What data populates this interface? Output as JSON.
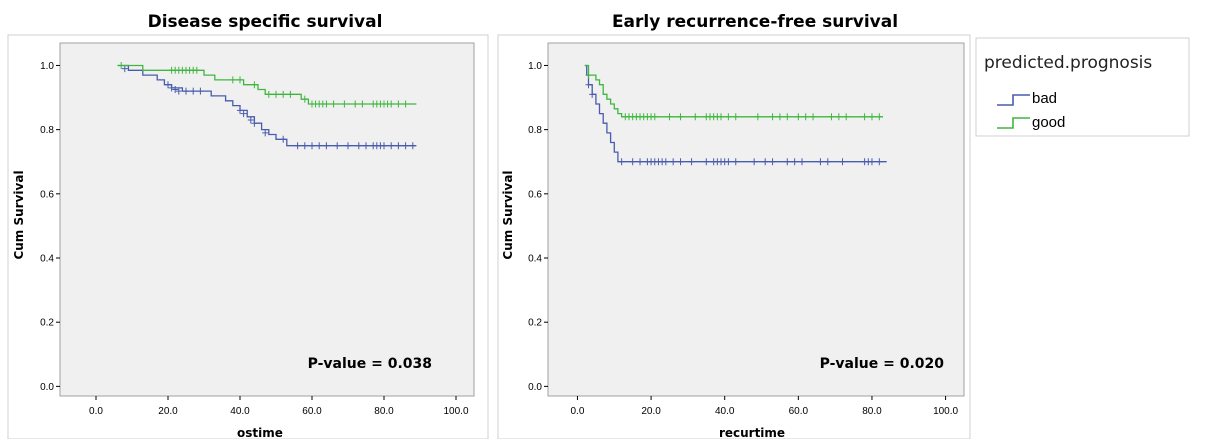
{
  "colors": {
    "bad": "#4a5cad",
    "good": "#3fb73f",
    "plot_bg": "#f0f0f0",
    "frame": "#a0a0a0"
  },
  "legend": {
    "title": "predicted.prognosis",
    "items": [
      {
        "label": "bad",
        "color": "#4a5cad"
      },
      {
        "label": "good",
        "color": "#3fb73f"
      }
    ]
  },
  "chart_data": [
    {
      "type": "line",
      "title": "Disease specific survival",
      "xlabel": "ostime",
      "ylabel": "Cum Survival",
      "xlim": [
        -10,
        105
      ],
      "ylim": [
        -0.03,
        1.07
      ],
      "xticks": [
        0,
        20,
        40,
        60,
        80,
        100
      ],
      "xtick_labels": [
        "0.0",
        "20.0",
        "40.0",
        "60.0",
        "80.0",
        "100.0"
      ],
      "yticks": [
        0,
        0.2,
        0.4,
        0.6,
        0.8,
        1.0
      ],
      "ytick_labels": [
        "0.0",
        "0.2",
        "0.4",
        "0.6",
        "0.8",
        "1.0"
      ],
      "annotation": "P-value = 0.038",
      "series": [
        {
          "name": "bad",
          "color": "#4a5cad",
          "steps": [
            [
              6,
              1.0
            ],
            [
              9,
              0.985
            ],
            [
              13,
              0.97
            ],
            [
              17,
              0.955
            ],
            [
              19,
              0.94
            ],
            [
              21,
              0.93
            ],
            [
              24,
              0.92
            ],
            [
              32,
              0.905
            ],
            [
              36,
              0.89
            ],
            [
              38,
              0.875
            ],
            [
              40,
              0.86
            ],
            [
              42,
              0.84
            ],
            [
              44,
              0.82
            ],
            [
              46,
              0.8
            ],
            [
              48,
              0.785
            ],
            [
              50,
              0.77
            ],
            [
              53,
              0.75
            ],
            [
              89,
              0.75
            ]
          ],
          "censored": [
            [
              8,
              0.99
            ],
            [
              20,
              0.94
            ],
            [
              21,
              0.93
            ],
            [
              22,
              0.925
            ],
            [
              23,
              0.92
            ],
            [
              25,
              0.92
            ],
            [
              27,
              0.92
            ],
            [
              29,
              0.92
            ],
            [
              40,
              0.86
            ],
            [
              41,
              0.85
            ],
            [
              43,
              0.83
            ],
            [
              44,
              0.82
            ],
            [
              47,
              0.79
            ],
            [
              52,
              0.77
            ],
            [
              56,
              0.75
            ],
            [
              58,
              0.75
            ],
            [
              60,
              0.75
            ],
            [
              62,
              0.75
            ],
            [
              64,
              0.75
            ],
            [
              67,
              0.75
            ],
            [
              70,
              0.75
            ],
            [
              73,
              0.75
            ],
            [
              75,
              0.75
            ],
            [
              77,
              0.75
            ],
            [
              78,
              0.75
            ],
            [
              79,
              0.75
            ],
            [
              80,
              0.75
            ],
            [
              82,
              0.75
            ],
            [
              84,
              0.75
            ],
            [
              86,
              0.75
            ],
            [
              88,
              0.75
            ]
          ]
        },
        {
          "name": "good",
          "color": "#3fb73f",
          "steps": [
            [
              6,
              1.0
            ],
            [
              13,
              0.985
            ],
            [
              30,
              0.97
            ],
            [
              33,
              0.955
            ],
            [
              41,
              0.94
            ],
            [
              45,
              0.925
            ],
            [
              47,
              0.91
            ],
            [
              57,
              0.895
            ],
            [
              59,
              0.88
            ],
            [
              89,
              0.88
            ]
          ],
          "censored": [
            [
              7,
              1.0
            ],
            [
              21,
              0.985
            ],
            [
              22,
              0.985
            ],
            [
              23,
              0.985
            ],
            [
              24,
              0.985
            ],
            [
              25,
              0.985
            ],
            [
              26,
              0.985
            ],
            [
              27,
              0.985
            ],
            [
              28,
              0.985
            ],
            [
              38,
              0.955
            ],
            [
              40,
              0.955
            ],
            [
              44,
              0.94
            ],
            [
              48,
              0.91
            ],
            [
              50,
              0.91
            ],
            [
              52,
              0.91
            ],
            [
              54,
              0.91
            ],
            [
              58,
              0.895
            ],
            [
              60,
              0.88
            ],
            [
              61,
              0.88
            ],
            [
              62,
              0.88
            ],
            [
              63,
              0.88
            ],
            [
              64,
              0.88
            ],
            [
              66,
              0.88
            ],
            [
              69,
              0.88
            ],
            [
              72,
              0.88
            ],
            [
              74,
              0.88
            ],
            [
              77,
              0.88
            ],
            [
              78,
              0.88
            ],
            [
              79,
              0.88
            ],
            [
              80,
              0.88
            ],
            [
              81,
              0.88
            ],
            [
              82,
              0.88
            ],
            [
              84,
              0.88
            ],
            [
              86,
              0.88
            ]
          ]
        }
      ]
    },
    {
      "type": "line",
      "title": "Early recurrence-free survival",
      "xlabel": "recurtime",
      "ylabel": "Cum Survival",
      "xlim": [
        -8,
        105
      ],
      "ylim": [
        -0.03,
        1.07
      ],
      "xticks": [
        0,
        20,
        40,
        60,
        80,
        100
      ],
      "xtick_labels": [
        "0.0",
        "20.0",
        "40.0",
        "60.0",
        "80.0",
        "100.0"
      ],
      "yticks": [
        0,
        0.2,
        0.4,
        0.6,
        0.8,
        1.0
      ],
      "ytick_labels": [
        "0.0",
        "0.2",
        "0.4",
        "0.6",
        "0.8",
        "1.0"
      ],
      "annotation": "P-value = 0.020",
      "series": [
        {
          "name": "bad",
          "color": "#4a5cad",
          "steps": [
            [
              2,
              1.0
            ],
            [
              2.5,
              0.97
            ],
            [
              3,
              0.94
            ],
            [
              4,
              0.91
            ],
            [
              5,
              0.88
            ],
            [
              6,
              0.85
            ],
            [
              7,
              0.82
            ],
            [
              8,
              0.79
            ],
            [
              9,
              0.76
            ],
            [
              10,
              0.73
            ],
            [
              11,
              0.7
            ],
            [
              84,
              0.7
            ]
          ],
          "censored": [
            [
              3,
              0.94
            ],
            [
              4,
              0.91
            ],
            [
              12,
              0.7
            ],
            [
              15,
              0.7
            ],
            [
              17,
              0.7
            ],
            [
              19,
              0.7
            ],
            [
              20,
              0.7
            ],
            [
              21,
              0.7
            ],
            [
              22,
              0.7
            ],
            [
              23,
              0.7
            ],
            [
              24,
              0.7
            ],
            [
              26,
              0.7
            ],
            [
              28,
              0.7
            ],
            [
              31,
              0.7
            ],
            [
              35,
              0.7
            ],
            [
              37,
              0.7
            ],
            [
              38,
              0.7
            ],
            [
              39,
              0.7
            ],
            [
              40,
              0.7
            ],
            [
              41,
              0.7
            ],
            [
              43,
              0.7
            ],
            [
              48,
              0.7
            ],
            [
              51,
              0.7
            ],
            [
              53,
              0.7
            ],
            [
              57,
              0.7
            ],
            [
              59,
              0.7
            ],
            [
              61,
              0.7
            ],
            [
              66,
              0.7
            ],
            [
              68,
              0.7
            ],
            [
              72,
              0.7
            ],
            [
              78,
              0.7
            ],
            [
              79,
              0.7
            ],
            [
              80,
              0.7
            ],
            [
              82,
              0.7
            ]
          ]
        },
        {
          "name": "good",
          "color": "#3fb73f",
          "steps": [
            [
              2,
              1.0
            ],
            [
              3,
              0.97
            ],
            [
              5,
              0.955
            ],
            [
              6,
              0.94
            ],
            [
              7,
              0.91
            ],
            [
              8,
              0.895
            ],
            [
              9,
              0.88
            ],
            [
              10,
              0.865
            ],
            [
              11,
              0.85
            ],
            [
              12,
              0.84
            ],
            [
              83,
              0.84
            ]
          ],
          "censored": [
            [
              3,
              0.97
            ],
            [
              13,
              0.84
            ],
            [
              14,
              0.84
            ],
            [
              15,
              0.84
            ],
            [
              16,
              0.84
            ],
            [
              17,
              0.84
            ],
            [
              18,
              0.84
            ],
            [
              19,
              0.84
            ],
            [
              20,
              0.84
            ],
            [
              21,
              0.84
            ],
            [
              25,
              0.84
            ],
            [
              28,
              0.84
            ],
            [
              32,
              0.84
            ],
            [
              35,
              0.84
            ],
            [
              36,
              0.84
            ],
            [
              37,
              0.84
            ],
            [
              38,
              0.84
            ],
            [
              39,
              0.84
            ],
            [
              41,
              0.84
            ],
            [
              43,
              0.84
            ],
            [
              49,
              0.84
            ],
            [
              53,
              0.84
            ],
            [
              55,
              0.84
            ],
            [
              57,
              0.84
            ],
            [
              60,
              0.84
            ],
            [
              62,
              0.84
            ],
            [
              64,
              0.84
            ],
            [
              69,
              0.84
            ],
            [
              71,
              0.84
            ],
            [
              73,
              0.84
            ],
            [
              78,
              0.84
            ],
            [
              80,
              0.84
            ],
            [
              82,
              0.84
            ]
          ]
        }
      ]
    }
  ]
}
